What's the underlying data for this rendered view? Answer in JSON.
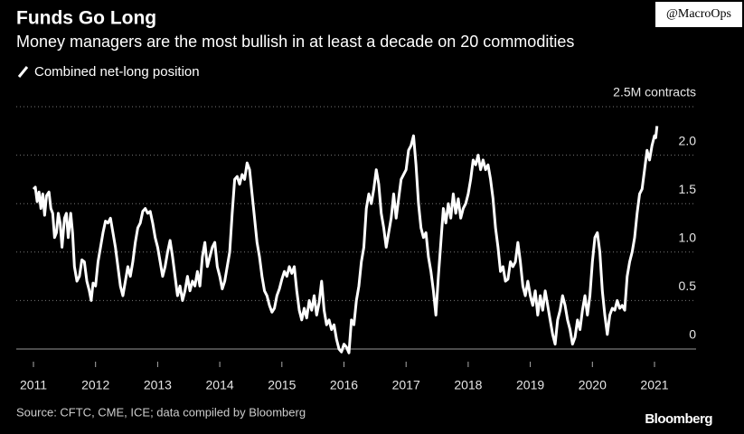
{
  "chart_data": {
    "type": "line",
    "title": "Funds Go Long",
    "subtitle": "Money managers are the most bullish in at least a decade on 20 commodities",
    "source": "Source: CFTC, CME, ICE; data compiled by Bloomberg",
    "brand": "Bloomberg",
    "watermark": "@MacroOps",
    "xlim": [
      2011,
      2021
    ],
    "xticks": [
      2011,
      2012,
      2013,
      2014,
      2015,
      2016,
      2017,
      2018,
      2019,
      2020,
      2021
    ],
    "ylim": [
      0,
      2.5
    ],
    "yticks": [
      0,
      0.5,
      {
        "value": 1,
        "label": "1.0"
      },
      1.5,
      {
        "value": 2,
        "label": "2.0"
      },
      {
        "value": 2.5,
        "label": "2.5M contracts"
      }
    ],
    "grid": true,
    "x": [
      2011.0,
      2011.03,
      2011.06,
      2011.09,
      2011.12,
      2011.15,
      2011.18,
      2011.21,
      2011.25,
      2011.28,
      2011.31,
      2011.34,
      2011.37,
      2011.4,
      2011.43,
      2011.46,
      2011.5,
      2011.53,
      2011.56,
      2011.6,
      2011.63,
      2011.66,
      2011.7,
      2011.74,
      2011.78,
      2011.82,
      2011.86,
      2011.9,
      2011.93,
      2011.96,
      2012.0,
      2012.04,
      2012.08,
      2012.12,
      2012.16,
      2012.2,
      2012.24,
      2012.28,
      2012.32,
      2012.36,
      2012.4,
      2012.44,
      2012.48,
      2012.52,
      2012.56,
      2012.6,
      2012.64,
      2012.68,
      2012.72,
      2012.76,
      2012.8,
      2012.84,
      2012.88,
      2012.92,
      2012.96,
      2013.0,
      2013.04,
      2013.08,
      2013.12,
      2013.16,
      2013.2,
      2013.24,
      2013.28,
      2013.32,
      2013.36,
      2013.4,
      2013.44,
      2013.48,
      2013.52,
      2013.56,
      2013.6,
      2013.64,
      2013.68,
      2013.72,
      2013.76,
      2013.8,
      2013.84,
      2013.88,
      2013.92,
      2013.96,
      2014.0,
      2014.04,
      2014.08,
      2014.12,
      2014.16,
      2014.2,
      2014.24,
      2014.28,
      2014.32,
      2014.36,
      2014.4,
      2014.44,
      2014.48,
      2014.52,
      2014.56,
      2014.6,
      2014.64,
      2014.68,
      2014.72,
      2014.76,
      2014.8,
      2014.84,
      2014.88,
      2014.92,
      2014.96,
      2015.0,
      2015.04,
      2015.08,
      2015.12,
      2015.16,
      2015.2,
      2015.24,
      2015.28,
      2015.32,
      2015.36,
      2015.4,
      2015.44,
      2015.48,
      2015.52,
      2015.56,
      2015.6,
      2015.64,
      2015.68,
      2015.72,
      2015.76,
      2015.8,
      2015.84,
      2015.88,
      2015.92,
      2015.96,
      2016.0,
      2016.04,
      2016.08,
      2016.12,
      2016.16,
      2016.2,
      2016.24,
      2016.28,
      2016.32,
      2016.36,
      2016.4,
      2016.44,
      2016.48,
      2016.52,
      2016.56,
      2016.6,
      2016.64,
      2016.68,
      2016.72,
      2016.76,
      2016.8,
      2016.84,
      2016.88,
      2016.92,
      2016.96,
      2017.0,
      2017.04,
      2017.08,
      2017.12,
      2017.16,
      2017.2,
      2017.24,
      2017.28,
      2017.32,
      2017.36,
      2017.4,
      2017.44,
      2017.48,
      2017.52,
      2017.56,
      2017.6,
      2017.64,
      2017.68,
      2017.72,
      2017.76,
      2017.8,
      2017.84,
      2017.88,
      2017.92,
      2017.96,
      2018.0,
      2018.04,
      2018.08,
      2018.12,
      2018.16,
      2018.2,
      2018.24,
      2018.28,
      2018.32,
      2018.36,
      2018.4,
      2018.44,
      2018.48,
      2018.52,
      2018.56,
      2018.6,
      2018.64,
      2018.68,
      2018.72,
      2018.76,
      2018.8,
      2018.84,
      2018.88,
      2018.92,
      2018.96,
      2019.0,
      2019.04,
      2019.08,
      2019.12,
      2019.16,
      2019.2,
      2019.24,
      2019.28,
      2019.32,
      2019.36,
      2019.4,
      2019.44,
      2019.48,
      2019.52,
      2019.56,
      2019.6,
      2019.64,
      2019.68,
      2019.72,
      2019.76,
      2019.8,
      2019.84,
      2019.88,
      2019.92,
      2019.96,
      2020.0,
      2020.04,
      2020.08,
      2020.12,
      2020.16,
      2020.2,
      2020.24,
      2020.28,
      2020.32,
      2020.36,
      2020.4,
      2020.44,
      2020.48,
      2020.52,
      2020.56,
      2020.6,
      2020.64,
      2020.68,
      2020.72,
      2020.76,
      2020.8,
      2020.84,
      2020.88,
      2020.92,
      2020.96,
      2021.0,
      2021.02,
      2021.04
    ],
    "series": [
      {
        "name": "Combined net-long position",
        "color": "#ffffff",
        "values": [
          1.65,
          1.67,
          1.52,
          1.62,
          1.45,
          1.6,
          1.38,
          1.58,
          1.62,
          1.45,
          1.4,
          1.15,
          1.2,
          1.4,
          1.3,
          1.05,
          1.35,
          1.4,
          1.15,
          1.4,
          1.2,
          0.85,
          0.7,
          0.75,
          0.92,
          0.9,
          0.7,
          0.6,
          0.5,
          0.68,
          0.65,
          0.9,
          1.05,
          1.2,
          1.32,
          1.3,
          1.35,
          1.2,
          1.05,
          0.85,
          0.65,
          0.55,
          0.7,
          0.85,
          0.75,
          0.9,
          1.1,
          1.25,
          1.3,
          1.42,
          1.45,
          1.4,
          1.42,
          1.3,
          1.15,
          1.05,
          0.9,
          0.75,
          0.85,
          1.0,
          1.12,
          0.95,
          0.75,
          0.55,
          0.65,
          0.5,
          0.6,
          0.75,
          0.6,
          0.7,
          0.65,
          0.8,
          0.65,
          0.95,
          1.1,
          0.85,
          0.95,
          1.05,
          1.1,
          0.85,
          0.75,
          0.62,
          0.7,
          0.85,
          1.0,
          1.4,
          1.75,
          1.78,
          1.7,
          1.8,
          1.75,
          1.92,
          1.85,
          1.6,
          1.35,
          1.1,
          0.95,
          0.75,
          0.6,
          0.55,
          0.45,
          0.38,
          0.42,
          0.55,
          0.62,
          0.72,
          0.8,
          0.75,
          0.85,
          0.78,
          0.85,
          0.6,
          0.4,
          0.3,
          0.42,
          0.32,
          0.5,
          0.4,
          0.55,
          0.35,
          0.48,
          0.7,
          0.4,
          0.25,
          0.3,
          0.2,
          0.25,
          0.1,
          0.0,
          -0.03,
          0.05,
          0.02,
          -0.04,
          0.3,
          0.25,
          0.5,
          0.65,
          0.9,
          1.05,
          1.45,
          1.6,
          1.5,
          1.65,
          1.85,
          1.7,
          1.4,
          1.25,
          1.05,
          1.2,
          1.35,
          1.6,
          1.35,
          1.55,
          1.75,
          1.8,
          1.85,
          2.05,
          2.1,
          2.2,
          1.9,
          1.5,
          1.25,
          1.15,
          1.2,
          0.95,
          0.8,
          0.6,
          0.35,
          0.75,
          1.1,
          1.45,
          1.3,
          1.5,
          1.35,
          1.6,
          1.4,
          1.55,
          1.35,
          1.45,
          1.5,
          1.6,
          1.75,
          1.95,
          1.9,
          2.0,
          1.85,
          1.95,
          1.85,
          1.9,
          1.75,
          1.55,
          1.25,
          1.05,
          0.8,
          0.85,
          0.7,
          0.72,
          0.9,
          0.85,
          0.9,
          1.1,
          0.9,
          0.65,
          0.55,
          0.7,
          0.55,
          0.45,
          0.6,
          0.35,
          0.55,
          0.4,
          0.6,
          0.45,
          0.3,
          0.15,
          0.05,
          0.3,
          0.4,
          0.55,
          0.45,
          0.3,
          0.2,
          0.05,
          0.12,
          0.3,
          0.2,
          0.4,
          0.55,
          0.35,
          0.55,
          0.9,
          1.15,
          1.2,
          1.0,
          0.6,
          0.35,
          0.15,
          0.35,
          0.42,
          0.4,
          0.5,
          0.42,
          0.45,
          0.4,
          0.75,
          0.9,
          1.0,
          1.15,
          1.4,
          1.6,
          1.65,
          1.85,
          2.05,
          1.95,
          2.1,
          2.2,
          2.18,
          2.3
        ]
      }
    ]
  }
}
